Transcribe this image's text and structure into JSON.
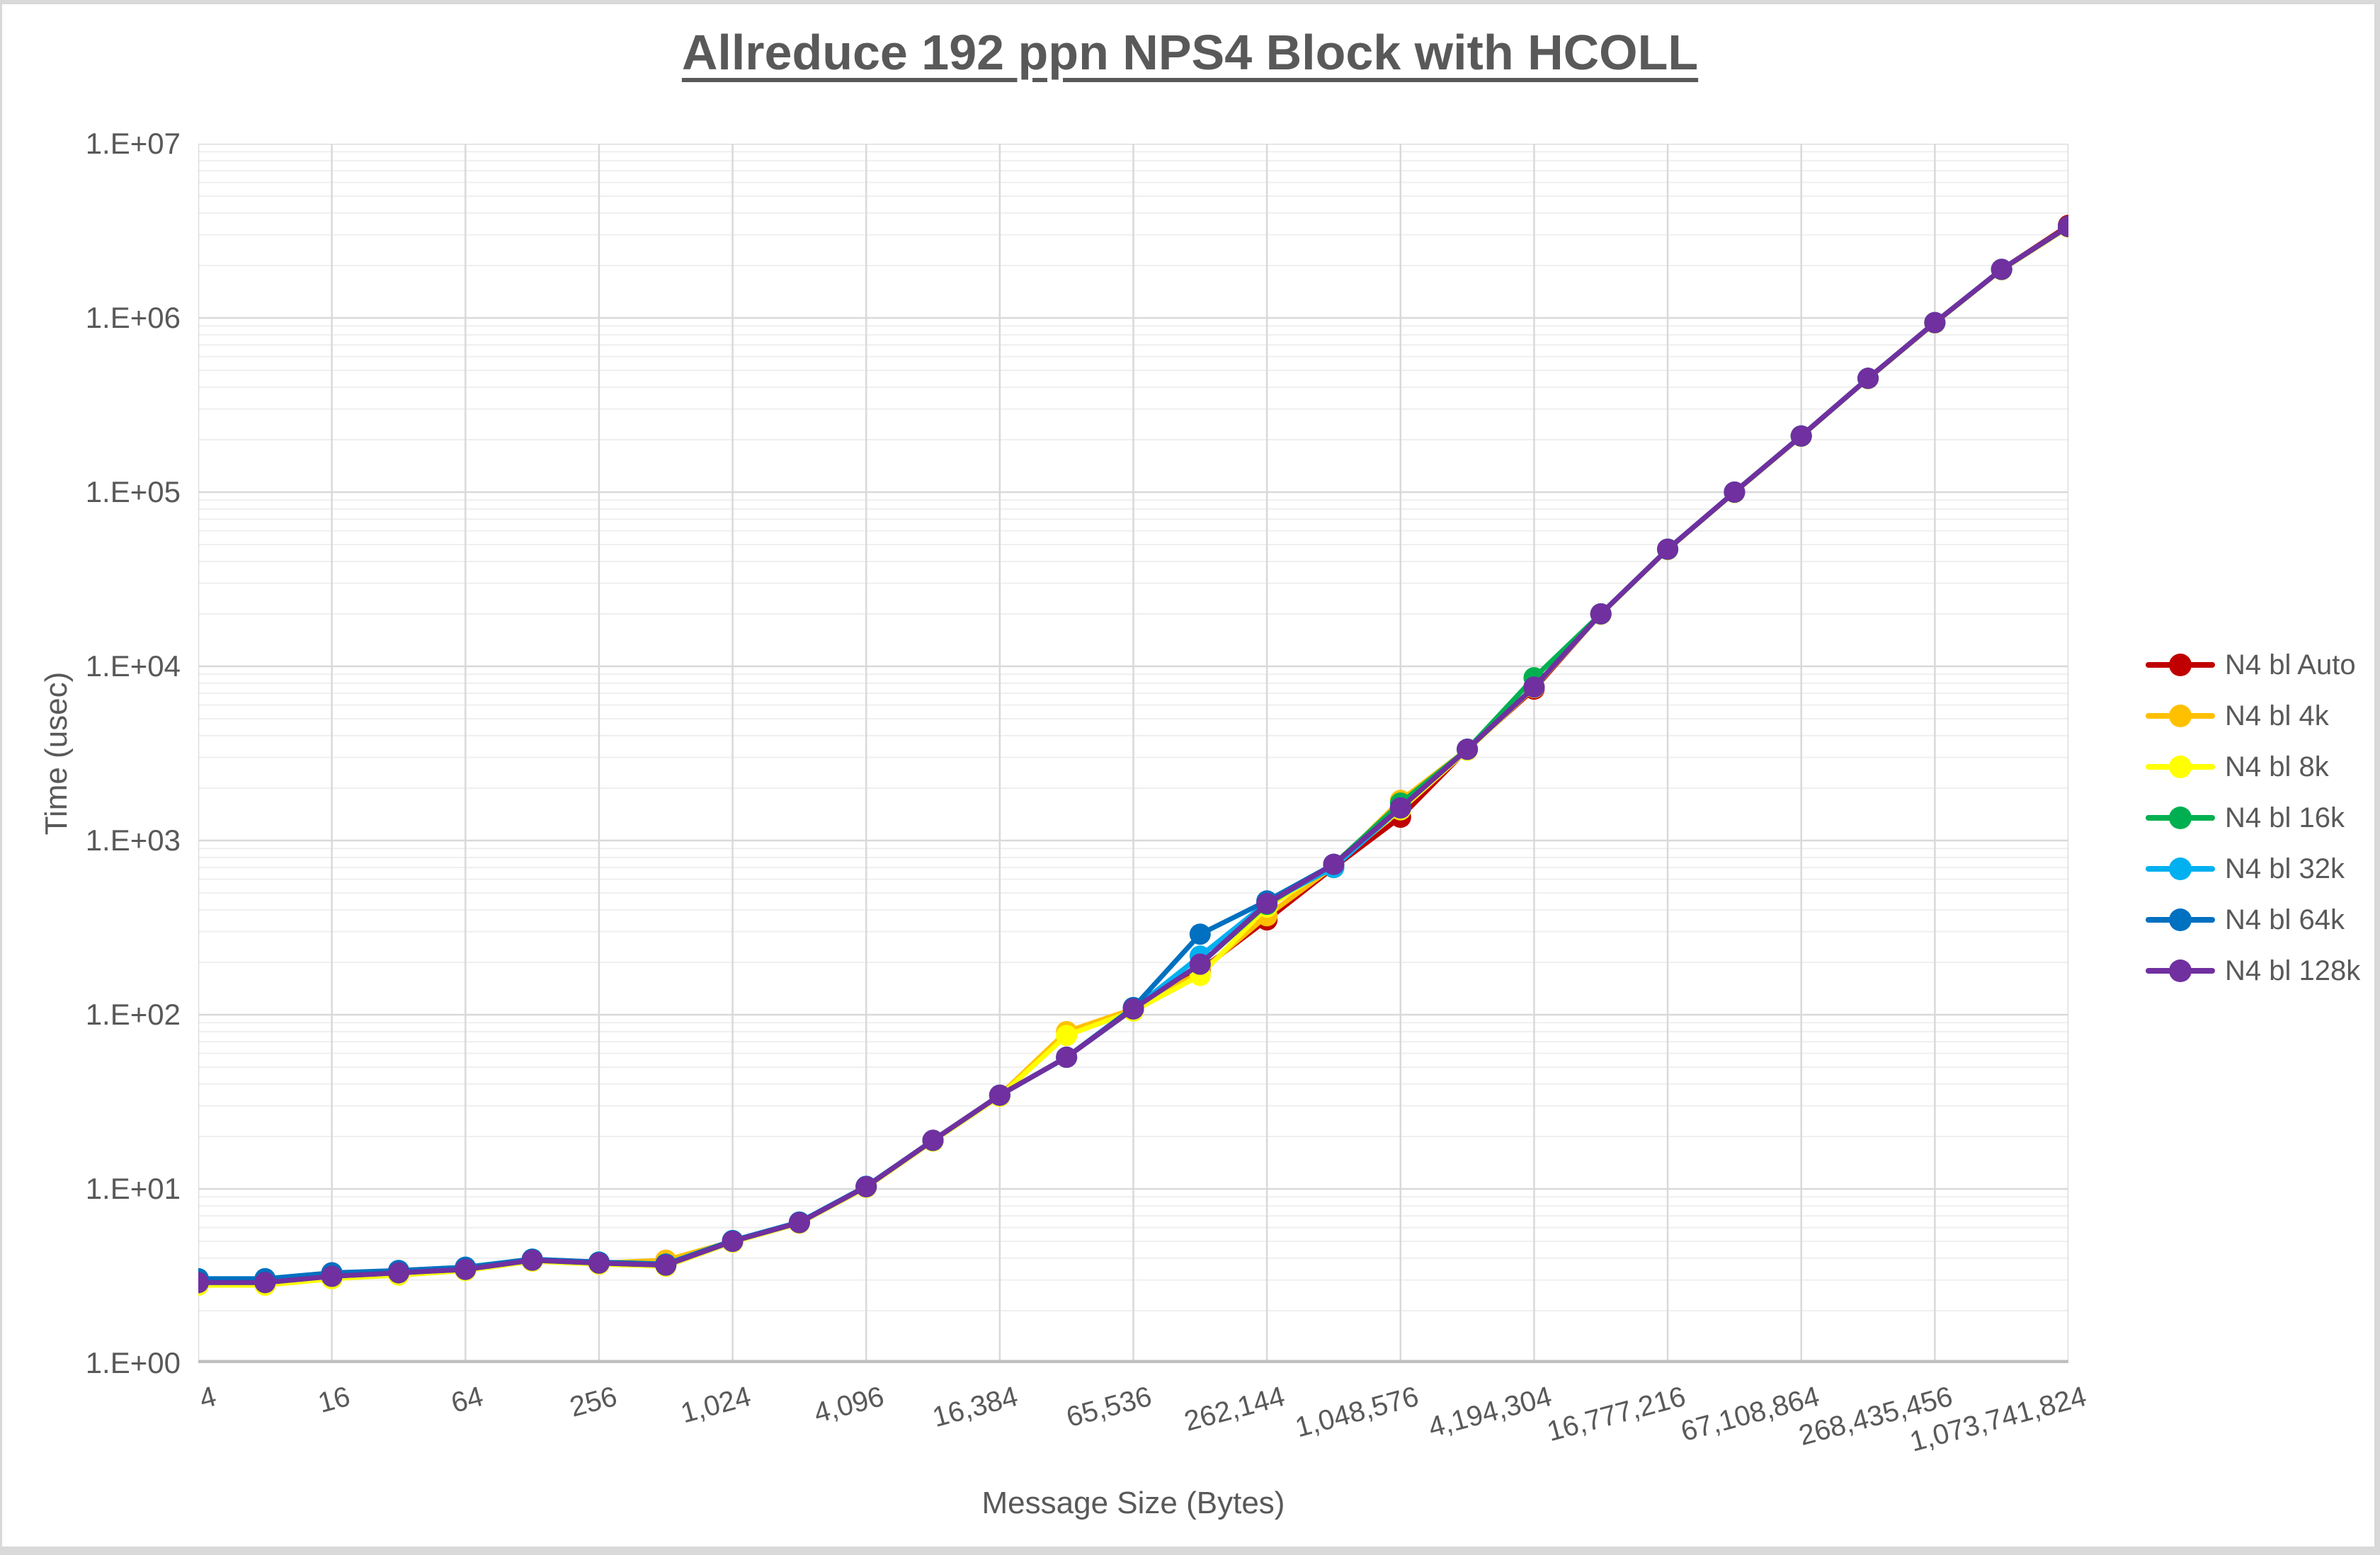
{
  "window": {
    "frame_color": "#d9d9d9",
    "background": "#ffffff"
  },
  "title": {
    "text": "Allreduce 192 ppn NPS4 Block with HCOLL"
  },
  "axes": {
    "y": {
      "title": "Time (usec)",
      "tick_labels": [
        "1.E+00",
        "1.E+01",
        "1.E+02",
        "1.E+03",
        "1.E+04",
        "1.E+05",
        "1.E+06",
        "1.E+07"
      ]
    },
    "x": {
      "title": "Message Size (Bytes)",
      "tick_labels": [
        "4",
        "16",
        "64",
        "256",
        "1,024",
        "4,096",
        "16,384",
        "65,536",
        "262,144",
        "1,048,576",
        "4,194,304",
        "16,777,216",
        "67,108,864",
        "268,435,456",
        "1,073,741,824"
      ]
    }
  },
  "legend": {
    "items": [
      {
        "label": "N4 bl Auto",
        "color": "#C00000"
      },
      {
        "label": "N4 bl 4k",
        "color": "#FFC000"
      },
      {
        "label": "N4 bl 8k",
        "color": "#FFFF00"
      },
      {
        "label": "N4 bl 16k",
        "color": "#00B050"
      },
      {
        "label": "N4 bl 32k",
        "color": "#00B0F0"
      },
      {
        "label": "N4 bl 64k",
        "color": "#0070C0"
      },
      {
        "label": "N4 bl 128k",
        "color": "#7030A0"
      }
    ]
  },
  "style_tokens": {
    "text_color": "#595959",
    "major_grid_color": "#d9d9d9",
    "minor_grid_color": "#efefef",
    "axis_line_color": "#bfbfbf"
  },
  "chart_data": {
    "type": "line",
    "title": "Allreduce 192 ppn NPS4 Block with HCOLL",
    "xlabel": "Message Size (Bytes)",
    "ylabel": "Time (usec)",
    "x_scale": "log2",
    "y_scale": "log10",
    "ylim": [
      1,
      10000000
    ],
    "xlim": [
      4,
      1073741824
    ],
    "grid": "horizontal major+minor, vertical major only",
    "legend_position": "right",
    "x": [
      4,
      8,
      16,
      32,
      64,
      128,
      256,
      512,
      1024,
      2048,
      4096,
      8192,
      16384,
      32768,
      65536,
      131072,
      262144,
      524288,
      1048576,
      2097152,
      4194304,
      8388608,
      16777216,
      33554432,
      67108864,
      134217728,
      268435456,
      536870912,
      1073741824
    ],
    "x_major_ticks": [
      4,
      16,
      64,
      256,
      1024,
      4096,
      16384,
      65536,
      262144,
      1048576,
      4194304,
      16777216,
      67108864,
      268435456,
      1073741824
    ],
    "series": [
      {
        "name": "N4 bl Auto",
        "color": "#C00000",
        "values": [
          2.9,
          2.9,
          3.3,
          3.3,
          3.45,
          3.9,
          3.75,
          3.65,
          5.0,
          6.4,
          10.3,
          19,
          34.5,
          57,
          108,
          180,
          350,
          700,
          1360,
          3340,
          7400,
          20000,
          47000,
          100000,
          210000,
          450000,
          940000,
          1900000,
          3400000
        ]
      },
      {
        "name": "N4 bl 4k",
        "color": "#FFC000",
        "values": [
          2.9,
          2.9,
          3.15,
          3.3,
          3.45,
          3.9,
          3.75,
          3.9,
          5.0,
          6.4,
          10.3,
          19,
          34.5,
          80,
          108,
          175,
          370,
          710,
          1700,
          3340,
          7600,
          20000,
          47000,
          100000,
          210000,
          450000,
          940000,
          1900000,
          3350000
        ]
      },
      {
        "name": "N4 bl 8k",
        "color": "#FFFF00",
        "values": [
          2.8,
          2.8,
          3.05,
          3.2,
          3.4,
          3.85,
          3.7,
          3.6,
          4.95,
          6.35,
          10.2,
          18.8,
          34,
          76,
          105,
          168,
          415,
          720,
          1500,
          3300,
          7550,
          19900,
          46800,
          99500,
          209000,
          448000,
          935000,
          1890000,
          3320000
        ]
      },
      {
        "name": "N4 bl 16k",
        "color": "#00B050",
        "values": [
          2.9,
          2.9,
          3.15,
          3.3,
          3.45,
          3.9,
          3.75,
          3.65,
          5.0,
          6.4,
          10.3,
          19,
          34.5,
          57,
          108,
          195,
          430,
          730,
          1640,
          3340,
          8600,
          20000,
          47000,
          100000,
          210000,
          450000,
          940000,
          1900000,
          3350000
        ]
      },
      {
        "name": "N4 bl 32k",
        "color": "#00B0F0",
        "values": [
          3.05,
          3.05,
          3.25,
          3.4,
          3.55,
          3.95,
          3.8,
          3.7,
          5.05,
          6.45,
          10.35,
          19,
          34.5,
          57,
          108,
          217,
          440,
          700,
          1540,
          3340,
          7600,
          20000,
          47000,
          100000,
          210000,
          450000,
          940000,
          1900000,
          3350000
        ]
      },
      {
        "name": "N4 bl 64k",
        "color": "#0070C0",
        "values": [
          3.05,
          3.05,
          3.3,
          3.4,
          3.55,
          3.95,
          3.8,
          3.7,
          5.05,
          6.45,
          10.35,
          19,
          34.5,
          57,
          110,
          290,
          450,
          730,
          1540,
          3340,
          7600,
          20000,
          47000,
          100000,
          210000,
          450000,
          940000,
          1900000,
          3350000
        ]
      },
      {
        "name": "N4 bl 128k",
        "color": "#7030A0",
        "values": [
          2.9,
          2.9,
          3.15,
          3.3,
          3.45,
          3.9,
          3.75,
          3.65,
          5.0,
          6.4,
          10.3,
          19,
          34.5,
          57,
          108,
          195,
          435,
          730,
          1540,
          3340,
          7600,
          20000,
          47000,
          100000,
          210000,
          450000,
          940000,
          1900000,
          3350000
        ]
      }
    ]
  }
}
